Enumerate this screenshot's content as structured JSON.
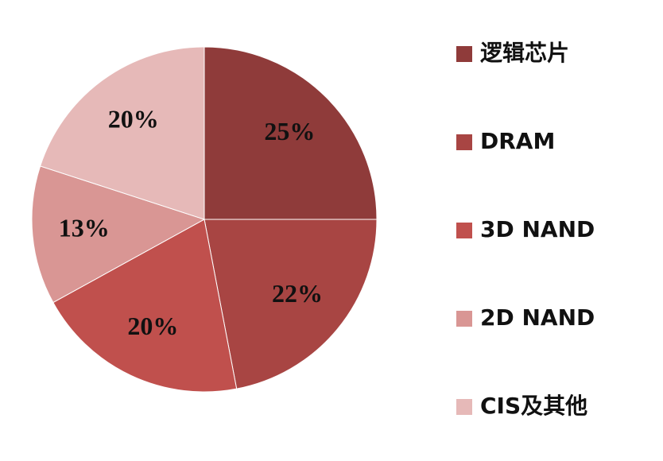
{
  "chart_data": {
    "type": "pie",
    "categories": [
      "逻辑芯片",
      "DRAM",
      "3D NAND",
      "2D NAND",
      "CIS及其他"
    ],
    "values": [
      25,
      22,
      20,
      13,
      20
    ],
    "value_labels": [
      "25%",
      "22%",
      "20%",
      "13%",
      "20%"
    ],
    "colors": [
      "#8f3b3a",
      "#a84543",
      "#c0504d",
      "#d99694",
      "#e6b9b8"
    ],
    "legend": "right"
  }
}
